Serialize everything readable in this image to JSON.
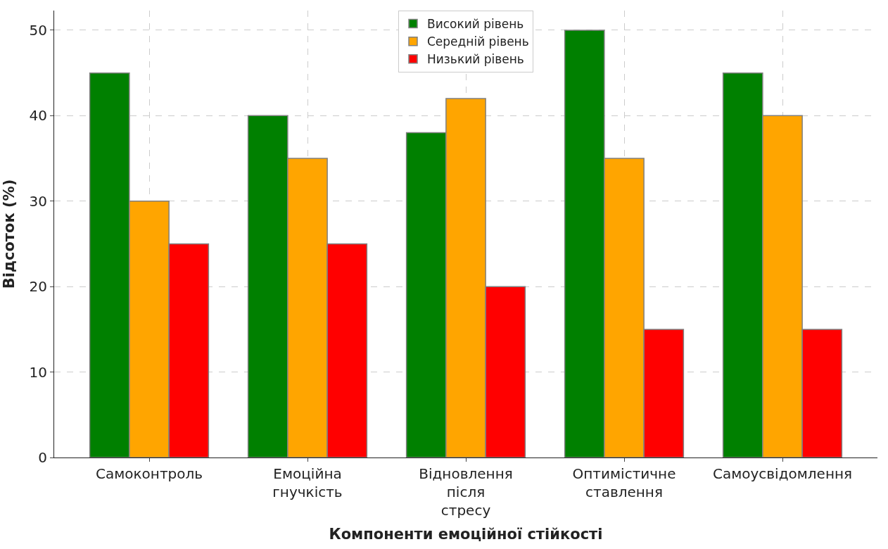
{
  "chart_data": {
    "type": "bar",
    "xlabel": "Компоненти емоційної стійкості",
    "ylabel": "Відсоток (%)",
    "categories": [
      "Самоконтроль",
      "Емоційна гнучкість",
      "Відновлення після стресу",
      "Оптимістичне ставлення",
      "Самоусвідомлення"
    ],
    "series": [
      {
        "name": "Високий рівень",
        "color": "#008000",
        "values": [
          45,
          40,
          38,
          50,
          45
        ]
      },
      {
        "name": "Середній рівень",
        "color": "#ffa500",
        "values": [
          30,
          35,
          42,
          35,
          40
        ]
      },
      {
        "name": "Низький рівень",
        "color": "#ff0000",
        "values": [
          25,
          25,
          20,
          15,
          15
        ]
      }
    ],
    "ylim": [
      0,
      52.3
    ],
    "yticks": [
      0,
      10,
      20,
      30,
      40,
      50
    ],
    "grid": true,
    "legend": "top"
  }
}
